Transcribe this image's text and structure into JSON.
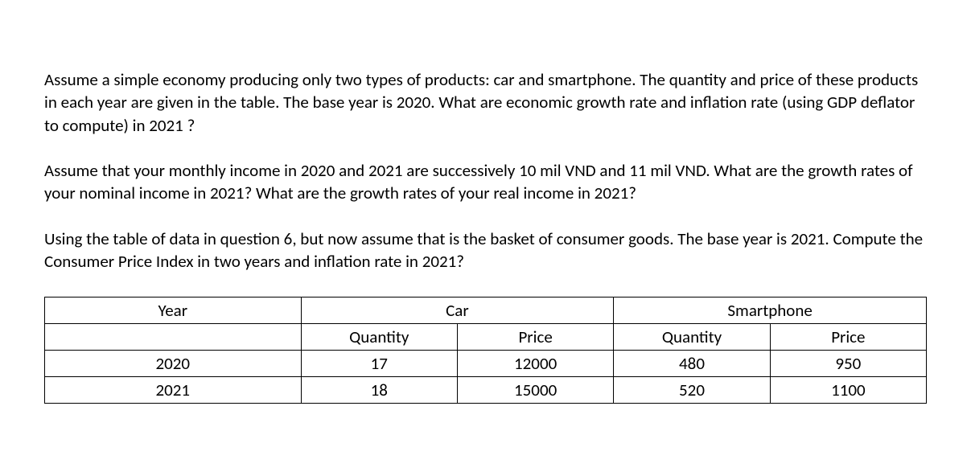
{
  "paragraphs": {
    "p1": "Assume a simple economy producing only two types of products: car and smartphone. The quantity and price of these products in each year are given in the table. The base year is 2020. What are economic growth rate and inflation rate (using GDP deflator to compute) in 2021 ?",
    "p2": "Assume that your monthly income in 2020 and 2021 are successively 10 mil VND and 11 mil VND. What are the growth rates of your nominal income in 2021? What are the growth rates of your real income in 2021?",
    "p3": "Using the table of data in question 6, but now assume that is the basket of consumer goods. The base year is 2021. Compute the Consumer Price Index in two years and inflation rate in 2021?"
  },
  "table": {
    "type": "table",
    "columns": [
      "Year",
      "Car",
      "Smartphone"
    ],
    "subheaders": {
      "year_blank": "",
      "car_quantity": "Quantity",
      "car_price": "Price",
      "phone_quantity": "Quantity",
      "phone_price": "Price"
    },
    "rows": [
      {
        "year": "2020",
        "car_quantity": "17",
        "car_price": "12000",
        "phone_quantity": "480",
        "phone_price": "950"
      },
      {
        "year": "2021",
        "car_quantity": "18",
        "car_price": "15000",
        "phone_quantity": "520",
        "phone_price": "1100"
      }
    ]
  },
  "style": {
    "background_color": "#ffffff",
    "text_color": "#000000",
    "border_color": "#000000",
    "font_size_body": 21,
    "font_family": "Calibri",
    "border_width": 1.5
  }
}
